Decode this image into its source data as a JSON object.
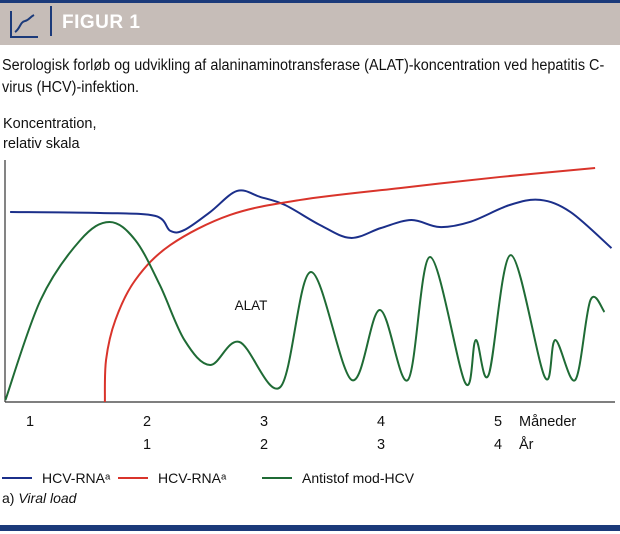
{
  "header": {
    "title": "FIGUR 1",
    "icon": "line-chart-icon"
  },
  "caption": "Serologisk forløb og udvikling af alaninaminotransferase (ALAT)-koncentration ved hepatitis C-virus (HCV)-infektion.",
  "footnote": {
    "prefix": "a) ",
    "text": "Viral load"
  },
  "chart_data": {
    "type": "line",
    "title": "",
    "ylabel_lines": [
      "Koncentration,",
      "relativ skala"
    ],
    "xlabel_rows": [
      {
        "label": "Måneder",
        "ticks": [
          {
            "x": 1,
            "label": "1"
          },
          {
            "x": 2,
            "label": "2"
          },
          {
            "x": 3,
            "label": "3"
          },
          {
            "x": 4,
            "label": "4"
          },
          {
            "x": 5,
            "label": "5"
          }
        ]
      },
      {
        "label": "År",
        "ticks": [
          {
            "x": 2,
            "label": "1"
          },
          {
            "x": 3,
            "label": "2"
          },
          {
            "x": 4,
            "label": "3"
          },
          {
            "x": 5,
            "label": "4"
          }
        ]
      }
    ],
    "xlim": [
      0.79,
      6.0
    ],
    "ylim": [
      0,
      100
    ],
    "grid": false,
    "legend_position": "bottom",
    "annotations": [
      {
        "text": "ALAT",
        "x": 2.92,
        "y": 38
      }
    ],
    "series": [
      {
        "name": "HCV-RNAᵃ",
        "color": "#1b2f8a",
        "x": [
          0.83,
          1.6,
          2.07,
          2.2,
          2.32,
          2.54,
          2.77,
          2.97,
          3.18,
          3.48,
          3.74,
          4.0,
          4.26,
          4.5,
          4.76,
          5.1,
          5.36,
          5.62,
          5.97
        ],
        "y": [
          78.5,
          78.1,
          76.9,
          70.7,
          71.1,
          78.5,
          87.2,
          84.7,
          81.4,
          73.1,
          67.8,
          71.9,
          75.2,
          72.3,
          74.4,
          81.4,
          83.5,
          78.5,
          63.6
        ]
      },
      {
        "name": "HCV-RNAᵃ",
        "color": "#d9342b",
        "x": [
          1.64,
          1.65,
          1.73,
          1.9,
          2.2,
          2.71,
          3.31,
          4.16,
          5.02,
          5.83
        ],
        "y": [
          0,
          17.4,
          33.9,
          50.4,
          64.9,
          77.3,
          83.5,
          88.4,
          93.0,
          96.7
        ]
      },
      {
        "name": "Antistof mod-HCV",
        "color": "#1f6b35",
        "x": [
          0.79,
          1.09,
          1.43,
          1.68,
          1.9,
          2.11,
          2.32,
          2.54,
          2.79,
          3.14,
          3.4,
          3.75,
          3.99,
          4.23,
          4.42,
          4.72,
          4.81,
          4.92,
          5.11,
          5.4,
          5.49,
          5.66,
          5.79,
          5.91
        ],
        "y": [
          0.8,
          42.1,
          66.9,
          74.4,
          66.9,
          48.3,
          25.6,
          15.3,
          24.8,
          6.2,
          53.7,
          9.1,
          38.0,
          9.1,
          59.9,
          7.9,
          25.6,
          11.2,
          60.7,
          10.3,
          25.6,
          9.1,
          42.1,
          37.2
        ]
      }
    ]
  }
}
